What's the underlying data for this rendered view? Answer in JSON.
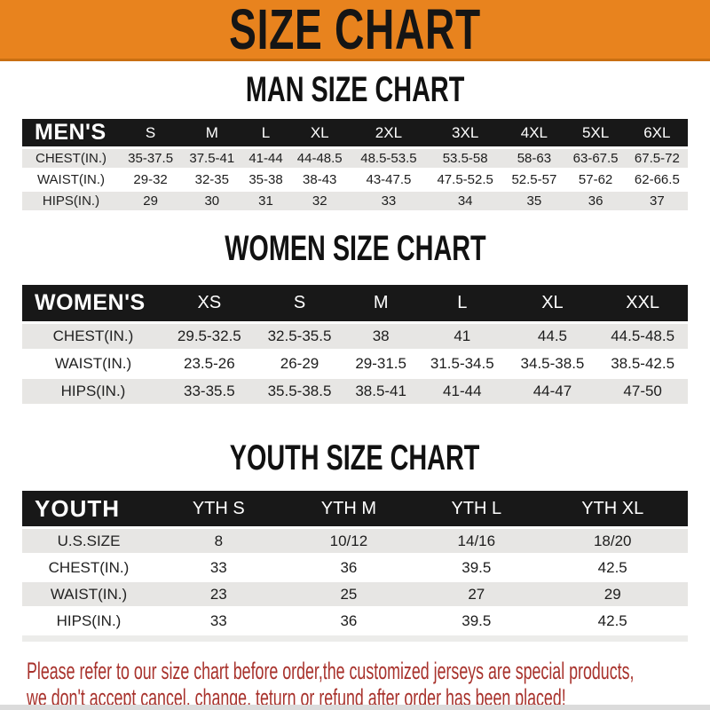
{
  "banner": {
    "title": "SIZE CHART"
  },
  "sections": [
    {
      "heading": "MAN SIZE CHART",
      "header_label": "MEN'S",
      "columns": [
        "S",
        "M",
        "L",
        "XL",
        "2XL",
        "3XL",
        "4XL",
        "5XL",
        "6XL"
      ],
      "rows": [
        {
          "label": "CHEST(IN.)",
          "values": [
            "35-37.5",
            "37.5-41",
            "41-44",
            "44-48.5",
            "48.5-53.5",
            "53.5-58",
            "58-63",
            "63-67.5",
            "67.5-72"
          ]
        },
        {
          "label": "WAIST(IN.)",
          "values": [
            "29-32",
            "32-35",
            "35-38",
            "38-43",
            "43-47.5",
            "47.5-52.5",
            "52.5-57",
            "57-62",
            "62-66.5"
          ]
        },
        {
          "label": "HIPS(IN.)",
          "values": [
            "29",
            "30",
            "31",
            "32",
            "33",
            "34",
            "35",
            "36",
            "37"
          ]
        }
      ]
    },
    {
      "heading": "WOMEN SIZE CHART",
      "header_label": "WOMEN'S",
      "columns": [
        "XS",
        "S",
        "M",
        "L",
        "XL",
        "XXL"
      ],
      "rows": [
        {
          "label": "CHEST(IN.)",
          "values": [
            "29.5-32.5",
            "32.5-35.5",
            "38",
            "41",
            "44.5",
            "44.5-48.5"
          ]
        },
        {
          "label": "WAIST(IN.)",
          "values": [
            "23.5-26",
            "26-29",
            "29-31.5",
            "31.5-34.5",
            "34.5-38.5",
            "38.5-42.5"
          ]
        },
        {
          "label": "HIPS(IN.)",
          "values": [
            "33-35.5",
            "35.5-38.5",
            "38.5-41",
            "41-44",
            "44-47",
            "47-50"
          ]
        }
      ]
    },
    {
      "heading": "YOUTH SIZE CHART",
      "header_label": "YOUTH",
      "columns": [
        "YTH S",
        "YTH M",
        "YTH L",
        "YTH XL"
      ],
      "rows": [
        {
          "label": "U.S.SIZE",
          "values": [
            "8",
            "10/12",
            "14/16",
            "18/20"
          ]
        },
        {
          "label": "CHEST(IN.)",
          "values": [
            "33",
            "36",
            "39.5",
            "42.5"
          ]
        },
        {
          "label": "WAIST(IN.)",
          "values": [
            "23",
            "25",
            "27",
            "29"
          ]
        },
        {
          "label": "HIPS(IN.)",
          "values": [
            "33",
            "36",
            "39.5",
            "42.5"
          ]
        }
      ]
    }
  ],
  "disclaimer": {
    "line1": "Please refer to our size chart before order,the customized jerseys are special products,",
    "line2": "we don't accept cancel, change, teturn or refund after order has been placed!"
  },
  "colors": {
    "accent_orange": "#E8831E",
    "accent_orange_dark": "#C96F12",
    "header_bar_black": "#181818",
    "row_stripe_gray": "#E7E6E4",
    "disclaimer_red": "#A8322C",
    "bottom_strip_gray": "#DBDBDB"
  }
}
